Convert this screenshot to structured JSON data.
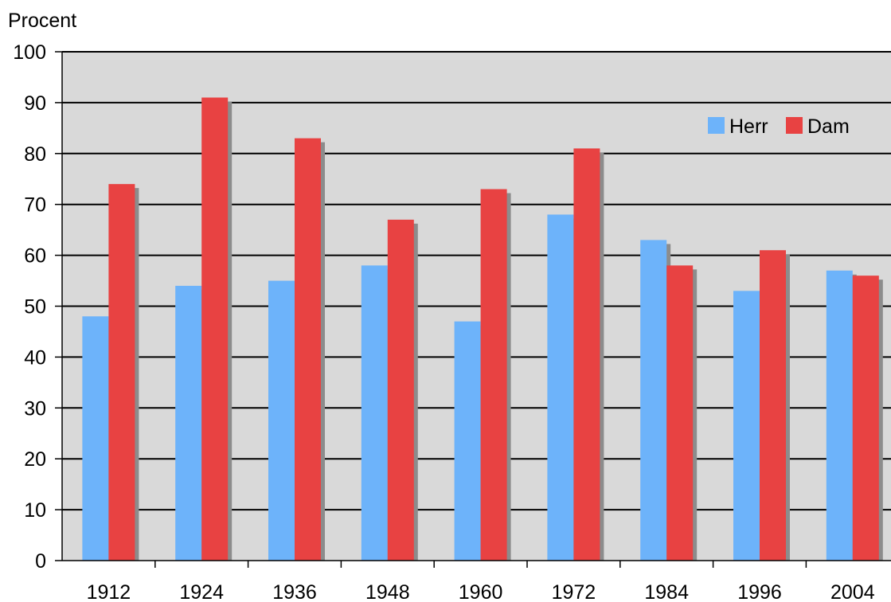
{
  "chart_data": {
    "type": "bar",
    "ylabel": "Procent",
    "xlabel": "",
    "title": "",
    "categories": [
      "1912",
      "1924",
      "1936",
      "1948",
      "1960",
      "1972",
      "1984",
      "1996",
      "2004"
    ],
    "series": [
      {
        "name": "Herr",
        "color": "#6db3fa",
        "values": [
          48,
          54,
          55,
          58,
          47,
          68,
          63,
          53,
          57
        ]
      },
      {
        "name": "Dam",
        "color": "#e84242",
        "values": [
          74,
          91,
          83,
          67,
          73,
          81,
          58,
          61,
          56
        ]
      }
    ],
    "ylim": [
      0,
      100
    ],
    "yticks": [
      0,
      10,
      20,
      30,
      40,
      50,
      60,
      70,
      80,
      90,
      100
    ],
    "grid": true,
    "legend_position": "top-right",
    "plot_background": "#d9d9d9",
    "shadow_color": "#8c8c8c"
  }
}
